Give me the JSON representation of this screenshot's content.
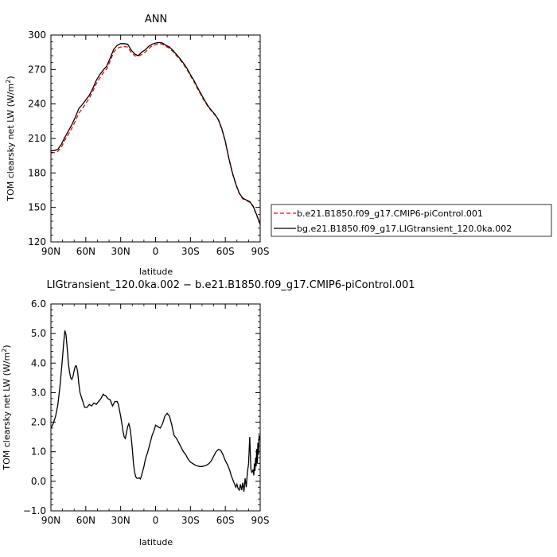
{
  "chart_data": [
    {
      "type": "line",
      "title": "ANN",
      "xlabel": "latitude",
      "ylabel": "TOM clearsky net LW (W/m",
      "ylabel_sup": "2",
      "ylabel_end": ")",
      "xlim": [
        90,
        -90
      ],
      "ylim": [
        120,
        300
      ],
      "xticks": [
        {
          "value": 90,
          "label": "90N"
        },
        {
          "value": 60,
          "label": "60N"
        },
        {
          "value": 30,
          "label": "30N"
        },
        {
          "value": 0,
          "label": "0"
        },
        {
          "value": -30,
          "label": "30S"
        },
        {
          "value": -60,
          "label": "60S"
        },
        {
          "value": -90,
          "label": "90S"
        }
      ],
      "yticks": [
        {
          "value": 300,
          "label": "300"
        },
        {
          "value": 270,
          "label": "270"
        },
        {
          "value": 240,
          "label": "240"
        },
        {
          "value": 210,
          "label": "210"
        },
        {
          "value": 180,
          "label": "180"
        },
        {
          "value": 150,
          "label": "150"
        },
        {
          "value": 120,
          "label": "120"
        }
      ],
      "legend_position": "right",
      "series": [
        {
          "name": "b.e21.B1850.f09_g17.CMIP6-piControl.001",
          "color": "#ff0000",
          "dash": "dashed",
          "x": [
            90,
            87,
            84,
            81,
            78,
            75,
            72,
            69,
            66,
            63,
            60,
            57,
            54,
            51,
            48,
            45,
            42,
            39,
            36,
            33,
            30,
            27,
            24,
            21,
            18,
            15,
            12,
            9,
            6,
            3,
            0,
            -3,
            -6,
            -9,
            -12,
            -15,
            -18,
            -21,
            -24,
            -27,
            -30,
            -33,
            -36,
            -39,
            -42,
            -45,
            -48,
            -51,
            -54,
            -57,
            -60,
            -63,
            -66,
            -69,
            -72,
            -75,
            -78,
            -81,
            -84,
            -87,
            -90
          ],
          "y": [
            197.5,
            197.8,
            198.8,
            202.5,
            208.5,
            213.5,
            219,
            225,
            232,
            236,
            240.5,
            245,
            251,
            257.5,
            262.5,
            267,
            270.5,
            277.5,
            285,
            288.5,
            289.5,
            290,
            289.5,
            285,
            282,
            281.5,
            283,
            285,
            288,
            290.5,
            291.5,
            292.5,
            292,
            290,
            288.5,
            285.5,
            282,
            278.5,
            274.5,
            270,
            264.5,
            259.5,
            253.5,
            248,
            242.5,
            238,
            234,
            230.5,
            226,
            218,
            207,
            192.5,
            180,
            170,
            162,
            157.5,
            156,
            154.5,
            150.5,
            143,
            135
          ]
        },
        {
          "name": "bg.e21.B1850.f09_g17.LIGtransient_120.0ka.002",
          "color": "#000000",
          "dash": "solid",
          "x": [
            90,
            87,
            84,
            81,
            78,
            75,
            72,
            69,
            66,
            63,
            60,
            57,
            54,
            51,
            48,
            45,
            42,
            39,
            36,
            33,
            30,
            27,
            24,
            21,
            18,
            15,
            12,
            9,
            6,
            3,
            0,
            -3,
            -6,
            -9,
            -12,
            -15,
            -18,
            -21,
            -24,
            -27,
            -30,
            -33,
            -36,
            -39,
            -42,
            -45,
            -48,
            -51,
            -54,
            -57,
            -60,
            -63,
            -66,
            -69,
            -72,
            -75,
            -78,
            -81,
            -84,
            -87,
            -90
          ],
          "y": [
            199.3,
            199.5,
            200.5,
            205,
            211,
            216.5,
            222,
            228.5,
            236,
            239.5,
            243.5,
            247.5,
            253.5,
            260.5,
            265.5,
            269.5,
            273,
            280,
            287.5,
            291,
            292.5,
            292.5,
            292,
            287,
            283.5,
            282,
            285,
            287,
            290,
            292,
            293,
            293.5,
            293,
            291,
            289.5,
            286.5,
            283,
            279.5,
            275.5,
            271,
            265.5,
            260.5,
            254.5,
            249,
            243.5,
            238.5,
            234.5,
            231,
            226.5,
            218.5,
            207.5,
            193,
            180.5,
            170.5,
            162.5,
            158,
            156.5,
            155,
            151,
            143.5,
            135.5
          ]
        }
      ]
    },
    {
      "type": "line",
      "title": "LIGtransient_120.0ka.002 − b.e21.B1850.f09_g17.CMIP6-piControl.001",
      "xlabel": "latitude",
      "ylabel": "TOM clearsky net LW (W/m",
      "ylabel_sup": "2",
      "ylabel_end": ")",
      "xlim": [
        90,
        -90
      ],
      "ylim": [
        -1.0,
        6.0
      ],
      "xticks": [
        {
          "value": 90,
          "label": "90N"
        },
        {
          "value": 60,
          "label": "60N"
        },
        {
          "value": 30,
          "label": "30N"
        },
        {
          "value": 0,
          "label": "0"
        },
        {
          "value": -30,
          "label": "30S"
        },
        {
          "value": -60,
          "label": "60S"
        },
        {
          "value": -90,
          "label": "90S"
        }
      ],
      "yticks": [
        {
          "value": 6.0,
          "label": "6.0"
        },
        {
          "value": 5.0,
          "label": "5.0"
        },
        {
          "value": 4.0,
          "label": "4.0"
        },
        {
          "value": 3.0,
          "label": "3.0"
        },
        {
          "value": 2.0,
          "label": "2.0"
        },
        {
          "value": 1.0,
          "label": "1.0"
        },
        {
          "value": 0.0,
          "label": "0.0"
        },
        {
          "value": -1.0,
          "label": "−1.0"
        }
      ],
      "series": [
        {
          "color": "#000000",
          "dash": "solid",
          "x": [
            90,
            88,
            86,
            84,
            82,
            80,
            79,
            78,
            77,
            76,
            75,
            74,
            73,
            72,
            71,
            70,
            69,
            68,
            67,
            66,
            65,
            63,
            61,
            59,
            57,
            55,
            53,
            51,
            49,
            47,
            45,
            44,
            43,
            41,
            39,
            37,
            35,
            33,
            32,
            31,
            30,
            29,
            28,
            27,
            26,
            25,
            24,
            23,
            22,
            21,
            20,
            19,
            18,
            17,
            16,
            15,
            14,
            13,
            12,
            11,
            10,
            9,
            8,
            7,
            6,
            5,
            4,
            3,
            2,
            1,
            0,
            -2,
            -4,
            -6,
            -8,
            -10,
            -12,
            -14,
            -15,
            -16,
            -17,
            -18,
            -19,
            -20,
            -22,
            -24,
            -26,
            -28,
            -30,
            -32,
            -34,
            -36,
            -38,
            -40,
            -42,
            -44,
            -46,
            -48,
            -50,
            -52,
            -54,
            -56,
            -58,
            -60,
            -62,
            -63,
            -64,
            -65,
            -66,
            -67,
            -68,
            -69,
            -70,
            -71,
            -72,
            -73,
            -74,
            -75,
            -76,
            -77,
            -78,
            -79,
            -80,
            -81,
            -82,
            -83,
            -84,
            -84.5,
            -85,
            -85.5,
            -86,
            -86.5,
            -87,
            -87.5,
            -88,
            -88.5,
            -89,
            -89.5,
            -90
          ],
          "y": [
            1.8,
            1.95,
            2.2,
            2.6,
            3.3,
            4.2,
            4.7,
            5.1,
            4.95,
            4.5,
            4.0,
            3.7,
            3.5,
            3.45,
            3.55,
            3.75,
            3.9,
            3.9,
            3.7,
            3.3,
            3.0,
            2.75,
            2.5,
            2.5,
            2.6,
            2.55,
            2.65,
            2.6,
            2.7,
            2.8,
            2.95,
            2.9,
            2.9,
            2.8,
            2.75,
            2.55,
            2.7,
            2.7,
            2.6,
            2.4,
            2.2,
            1.95,
            1.7,
            1.5,
            1.45,
            1.65,
            1.85,
            1.95,
            1.8,
            1.5,
            1.1,
            0.6,
            0.3,
            0.15,
            0.1,
            0.1,
            0.12,
            0.08,
            0.2,
            0.35,
            0.5,
            0.7,
            0.85,
            0.95,
            1.1,
            1.25,
            1.4,
            1.55,
            1.65,
            1.75,
            1.9,
            1.85,
            1.8,
            1.95,
            2.2,
            2.3,
            2.2,
            1.9,
            1.7,
            1.55,
            1.5,
            1.45,
            1.38,
            1.3,
            1.15,
            1.0,
            0.9,
            0.75,
            0.65,
            0.6,
            0.55,
            0.52,
            0.5,
            0.5,
            0.52,
            0.55,
            0.6,
            0.7,
            0.85,
            1.0,
            1.08,
            1.05,
            0.9,
            0.7,
            0.55,
            0.45,
            0.35,
            0.2,
            0.1,
            0.0,
            -0.1,
            -0.2,
            -0.1,
            -0.25,
            -0.3,
            -0.1,
            -0.3,
            -0.05,
            -0.35,
            0.1,
            -0.2,
            0.3,
            0.6,
            1.5,
            0.4,
            0.3,
            0.4,
            0.2,
            0.6,
            0.35,
            0.8,
            0.5,
            1.1,
            0.6,
            1.3,
            0.9,
            1.55,
            1.4,
            1.5
          ]
        }
      ]
    }
  ]
}
